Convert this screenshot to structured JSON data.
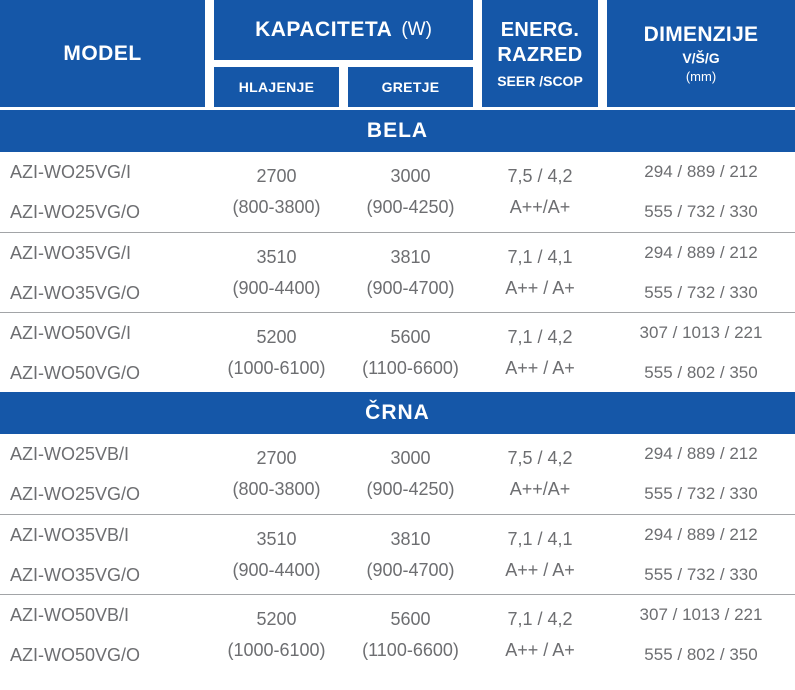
{
  "header": {
    "model": "MODEL",
    "kapaciteta": "KAPACITETA",
    "kapaciteta_unit": "(W)",
    "hlajenje": "HLAJENJE",
    "gretje": "GRETJE",
    "energ_line1": "ENERG.",
    "energ_line2": "RAZRED",
    "energ_sub": "SEER /SCOP",
    "dimenzije": "DIMENZIJE",
    "dimenzije_axes": "V/Š/G",
    "dimenzije_unit": "(mm)"
  },
  "colors": {
    "header_blue": "#1557a8",
    "text_gray": "#6d6e71",
    "separator_gray": "#a2a4a7"
  },
  "sections": [
    {
      "title": "BELA",
      "groups": [
        {
          "model_indoor": "AZI-WO25VG/I",
          "model_outdoor": "AZI-WO25VG/O",
          "cooling_value": "2700",
          "cooling_range": "(800-3800)",
          "heating_value": "3000",
          "heating_range": "(900-4250)",
          "energy_values": "7,5 / 4,2",
          "energy_class": "A++/A+",
          "dim_indoor": "294 / 889 / 212",
          "dim_outdoor": "555 / 732 / 330"
        },
        {
          "model_indoor": "AZI-WO35VG/I",
          "model_outdoor": "AZI-WO35VG/O",
          "cooling_value": "3510",
          "cooling_range": "(900-4400)",
          "heating_value": "3810",
          "heating_range": "(900-4700)",
          "energy_values": "7,1 / 4,1",
          "energy_class": "A++ / A+",
          "dim_indoor": "294 / 889 / 212",
          "dim_outdoor": "555 / 732 / 330"
        },
        {
          "model_indoor": "AZI-WO50VG/I",
          "model_outdoor": "AZI-WO50VG/O",
          "cooling_value": "5200",
          "cooling_range": "(1000-6100)",
          "heating_value": "5600",
          "heating_range": "(1100-6600)",
          "energy_values": "7,1 / 4,2",
          "energy_class": "A++ / A+",
          "dim_indoor": "307 / 1013 / 221",
          "dim_outdoor": "555 / 802 / 350"
        }
      ]
    },
    {
      "title": "ČRNA",
      "groups": [
        {
          "model_indoor": "AZI-WO25VB/I",
          "model_outdoor": "AZI-WO25VG/O",
          "cooling_value": "2700",
          "cooling_range": "(800-3800)",
          "heating_value": "3000",
          "heating_range": "(900-4250)",
          "energy_values": "7,5 / 4,2",
          "energy_class": "A++/A+",
          "dim_indoor": "294 / 889 / 212",
          "dim_outdoor": "555 / 732 / 330"
        },
        {
          "model_indoor": "AZI-WO35VB/I",
          "model_outdoor": "AZI-WO35VG/O",
          "cooling_value": "3510",
          "cooling_range": "(900-4400)",
          "heating_value": "3810",
          "heating_range": "(900-4700)",
          "energy_values": "7,1 / 4,1",
          "energy_class": "A++ / A+",
          "dim_indoor": "294 / 889 / 212",
          "dim_outdoor": "555 / 732 / 330"
        },
        {
          "model_indoor": "AZI-WO50VB/I",
          "model_outdoor": "AZI-WO50VG/O",
          "cooling_value": "5200",
          "cooling_range": "(1000-6100)",
          "heating_value": "5600",
          "heating_range": "(1100-6600)",
          "energy_values": "7,1 / 4,2",
          "energy_class": "A++ / A+",
          "dim_indoor": "307 / 1013 / 221",
          "dim_outdoor": "555 / 802 / 350"
        }
      ]
    }
  ]
}
